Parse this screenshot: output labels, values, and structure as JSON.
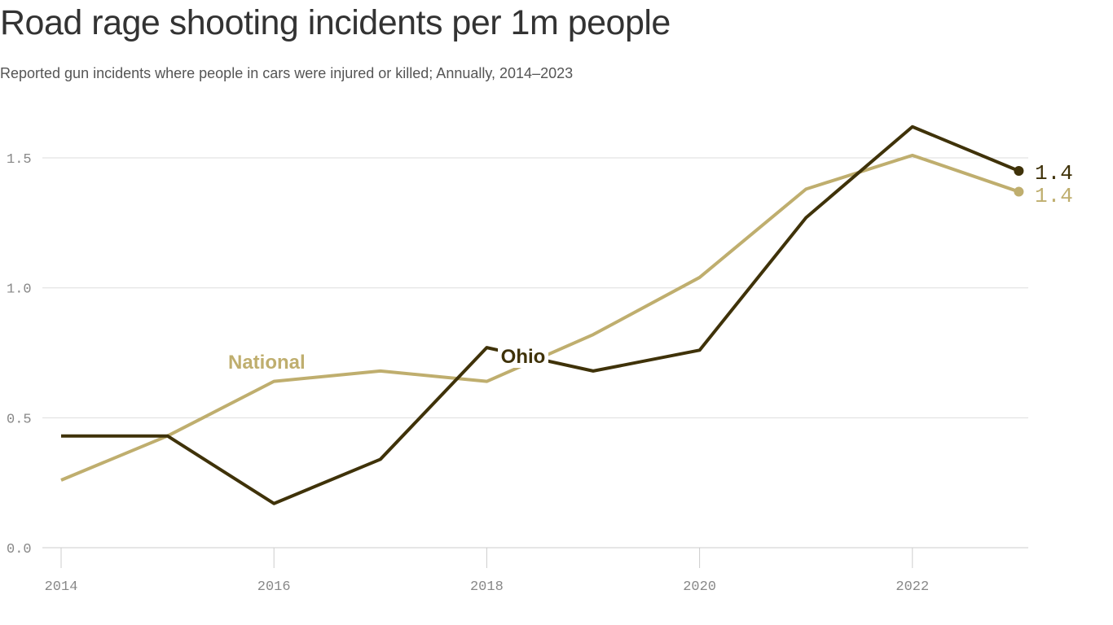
{
  "chart_data": {
    "type": "line",
    "title": "Road rage shooting incidents per 1m people",
    "subtitle": "Reported gun incidents where people in cars were injured or killed; Annually, 2014–2023",
    "x": [
      2014,
      2015,
      2016,
      2017,
      2018,
      2019,
      2020,
      2021,
      2022,
      2023
    ],
    "xticks": [
      "2014",
      "2016",
      "2018",
      "2020",
      "2022"
    ],
    "yticks": [
      "0.0",
      "0.5",
      "1.0",
      "1.5"
    ],
    "ylim": [
      0,
      1.7
    ],
    "grid": true,
    "series": [
      {
        "name": "National",
        "color": "#bfae6e",
        "values": [
          0.26,
          0.43,
          0.64,
          0.68,
          0.64,
          0.82,
          1.04,
          1.38,
          1.51,
          1.37
        ],
        "end_label": "1.4"
      },
      {
        "name": "Ohio",
        "color": "#3f3209",
        "values": [
          0.43,
          0.43,
          0.17,
          0.34,
          0.77,
          0.68,
          0.76,
          1.27,
          1.62,
          1.45
        ],
        "end_label": "1.4"
      }
    ]
  }
}
